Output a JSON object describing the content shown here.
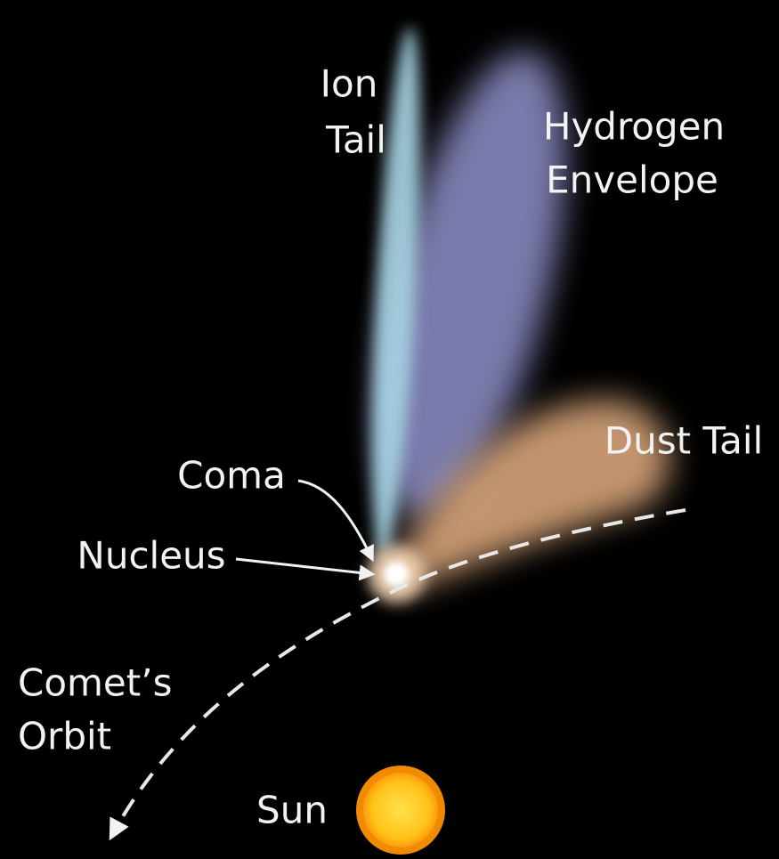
{
  "labels": [
    {
      "lines": [
        "Ion",
        "Tail"
      ]
    },
    {
      "lines": [
        "Hydrogen",
        "Envelope"
      ]
    },
    {
      "lines": [
        "Dust Tail"
      ]
    },
    {
      "lines": [
        "Coma"
      ]
    },
    {
      "lines": [
        "Nucleus"
      ]
    },
    {
      "lines": [
        "Comet’s",
        "Orbit"
      ]
    },
    {
      "lines": [
        "Sun"
      ]
    }
  ]
}
